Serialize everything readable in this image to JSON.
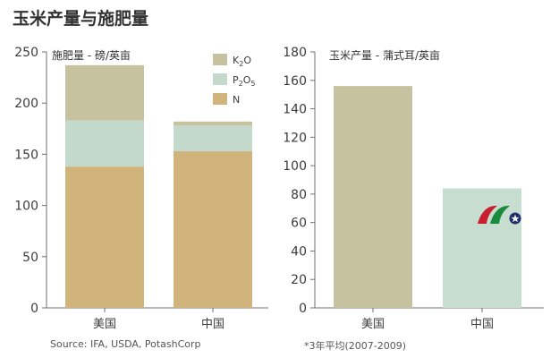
{
  "title": "玉米产量与施肥量",
  "footer": {
    "source": "Source: IFA, USDA, PotashCorp",
    "note": "*3年平均(2007-2009)"
  },
  "colors": {
    "K2O": "#c6c29f",
    "P2O5": "#c2d9cc",
    "N": "#d1b47c",
    "corn_us": "#c6c29f",
    "corn_cn": "#c6ddcf",
    "axis": "#6f6f6f"
  },
  "logo": {
    "icon": "dragon-logo-icon"
  },
  "chart_data": [
    {
      "type": "bar",
      "stacked": true,
      "ylabel": "施肥量 - 磅/英亩",
      "ylim": [
        0,
        250
      ],
      "yticks": [
        0,
        50,
        100,
        150,
        200,
        250
      ],
      "categories": [
        "美国",
        "中国"
      ],
      "series": [
        {
          "name": "N",
          "label": "N",
          "values": [
            138,
            153
          ],
          "color_key": "N"
        },
        {
          "name": "P2O5",
          "label": "P2O5",
          "values": [
            45,
            25
          ],
          "color_key": "P2O5"
        },
        {
          "name": "K2O",
          "label": "K2O",
          "values": [
            54,
            4
          ],
          "color_key": "K2O"
        }
      ],
      "legend": [
        "K2O",
        "P2O5",
        "N"
      ],
      "legend_position": "top-right"
    },
    {
      "type": "bar",
      "ylabel": "玉米产量 - 蒲式耳/英亩",
      "ylim": [
        0,
        180
      ],
      "yticks": [
        0,
        20,
        40,
        60,
        80,
        100,
        120,
        140,
        160,
        180
      ],
      "categories": [
        "美国",
        "中国"
      ],
      "values": [
        156,
        84
      ]
    }
  ]
}
